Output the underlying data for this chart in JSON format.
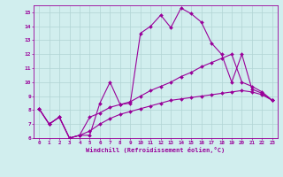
{
  "title": "",
  "xlabel": "Windchill (Refroidissement éolien,°C)",
  "ylabel": "",
  "bg_color": "#d1eeee",
  "line_color": "#990099",
  "grid_color": "#b0d4d4",
  "xlim": [
    -0.5,
    23.5
  ],
  "ylim": [
    6,
    15.5
  ],
  "yticks": [
    6,
    7,
    8,
    9,
    10,
    11,
    12,
    13,
    14,
    15
  ],
  "xticks": [
    0,
    1,
    2,
    3,
    4,
    5,
    6,
    7,
    8,
    9,
    10,
    11,
    12,
    13,
    14,
    15,
    16,
    17,
    18,
    19,
    20,
    21,
    22,
    23
  ],
  "line1_x": [
    0,
    1,
    2,
    3,
    4,
    5,
    6,
    7,
    8,
    9,
    10,
    11,
    12,
    13,
    14,
    15,
    16,
    17,
    18,
    19,
    20,
    21,
    22,
    23
  ],
  "line1_y": [
    8.1,
    7.0,
    7.5,
    6.0,
    6.2,
    6.2,
    8.5,
    10.0,
    8.4,
    8.5,
    13.5,
    14.0,
    14.8,
    13.9,
    15.3,
    14.9,
    14.3,
    12.8,
    12.0,
    10.0,
    12.0,
    9.5,
    9.2,
    8.7
  ],
  "line2_x": [
    0,
    1,
    2,
    3,
    4,
    5,
    6,
    7,
    8,
    9,
    10,
    11,
    12,
    13,
    14,
    15,
    16,
    17,
    18,
    19,
    20,
    21,
    22,
    23
  ],
  "line2_y": [
    8.1,
    7.0,
    7.5,
    6.0,
    6.2,
    7.5,
    7.8,
    8.2,
    8.4,
    8.6,
    9.0,
    9.4,
    9.7,
    10.0,
    10.4,
    10.7,
    11.1,
    11.4,
    11.7,
    12.0,
    10.0,
    9.7,
    9.3,
    8.7
  ],
  "line3_x": [
    0,
    1,
    2,
    3,
    4,
    5,
    6,
    7,
    8,
    9,
    10,
    11,
    12,
    13,
    14,
    15,
    16,
    17,
    18,
    19,
    20,
    21,
    22,
    23
  ],
  "line3_y": [
    8.1,
    7.0,
    7.5,
    6.0,
    6.2,
    6.5,
    7.0,
    7.4,
    7.7,
    7.9,
    8.1,
    8.3,
    8.5,
    8.7,
    8.8,
    8.9,
    9.0,
    9.1,
    9.2,
    9.3,
    9.4,
    9.3,
    9.1,
    8.7
  ]
}
